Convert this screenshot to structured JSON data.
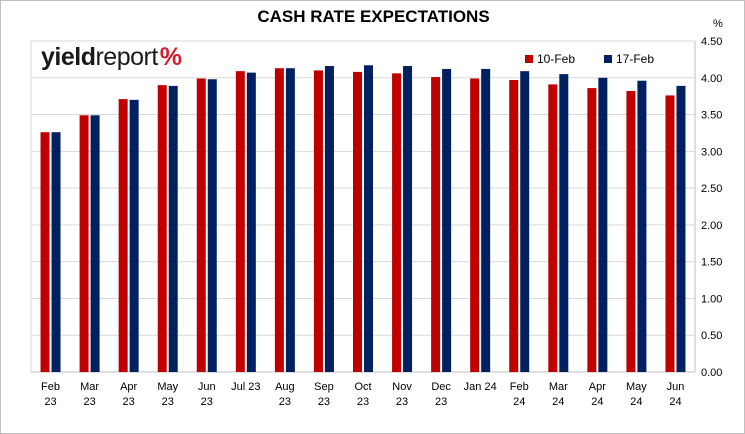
{
  "logo": {
    "part1": "yield",
    "part2": "report",
    "part3": "%"
  },
  "chart_data": {
    "type": "bar",
    "title": "CASH RATE EXPECTATIONS",
    "ylabel": "%",
    "ylim": [
      0,
      4.5
    ],
    "yticks": [
      "0.00",
      "0.50",
      "1.00",
      "1.50",
      "2.00",
      "2.50",
      "3.00",
      "3.50",
      "4.00",
      "4.50"
    ],
    "grid": true,
    "legend_position": "top-right",
    "categories": [
      [
        "Feb",
        "23"
      ],
      [
        "Mar",
        "23"
      ],
      [
        "Apr",
        "23"
      ],
      [
        "May",
        "23"
      ],
      [
        "Jun",
        "23"
      ],
      [
        "Jul 23"
      ],
      [
        "Aug",
        "23"
      ],
      [
        "Sep",
        "23"
      ],
      [
        "Oct",
        "23"
      ],
      [
        "Nov",
        "23"
      ],
      [
        "Dec",
        "23"
      ],
      [
        "Jan 24"
      ],
      [
        "Feb",
        "24"
      ],
      [
        "Mar",
        "24"
      ],
      [
        "Apr",
        "24"
      ],
      [
        "May",
        "24"
      ],
      [
        "Jun",
        "24"
      ]
    ],
    "series": [
      {
        "name": "10-Feb",
        "color": "#c00000",
        "values": [
          3.26,
          3.49,
          3.71,
          3.9,
          3.99,
          4.09,
          4.13,
          4.1,
          4.08,
          4.06,
          4.01,
          3.99,
          3.97,
          3.91,
          3.86,
          3.82,
          3.76
        ]
      },
      {
        "name": "17-Feb",
        "color": "#002060",
        "values": [
          3.26,
          3.49,
          3.7,
          3.89,
          3.98,
          4.07,
          4.13,
          4.16,
          4.17,
          4.16,
          4.12,
          4.12,
          4.09,
          4.05,
          4.0,
          3.96,
          3.89
        ]
      }
    ]
  }
}
